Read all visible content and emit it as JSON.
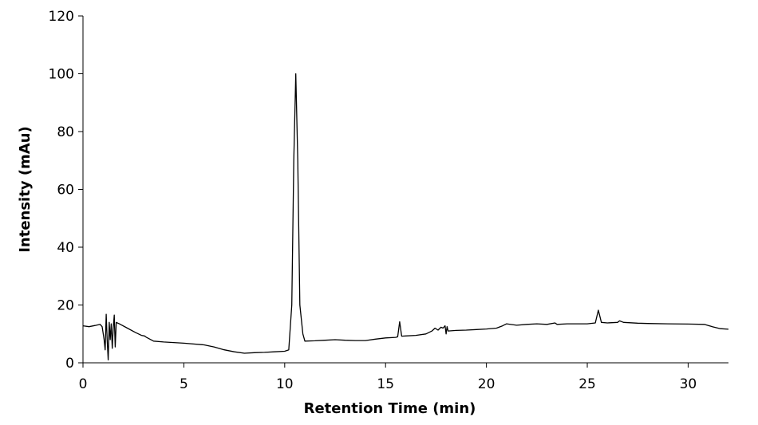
{
  "chart_data": {
    "type": "line",
    "title": "",
    "xlabel": "Retention Time (min)",
    "ylabel": "Intensity (mAu)",
    "xlim": [
      0,
      32
    ],
    "ylim": [
      0,
      120
    ],
    "x_ticks": [
      0,
      5,
      10,
      15,
      20,
      25,
      30
    ],
    "y_ticks": [
      0,
      20,
      40,
      60,
      80,
      100,
      120
    ],
    "grid": false,
    "legend": "none",
    "series": [
      {
        "color": "#000000",
        "points": [
          [
            0.0,
            12.8
          ],
          [
            0.3,
            12.5
          ],
          [
            0.6,
            12.9
          ],
          [
            0.85,
            13.3
          ],
          [
            0.95,
            12.5
          ],
          [
            1.05,
            8.0
          ],
          [
            1.1,
            4.5
          ],
          [
            1.15,
            16.8
          ],
          [
            1.2,
            8.0
          ],
          [
            1.25,
            1.0
          ],
          [
            1.3,
            14.0
          ],
          [
            1.35,
            8.0
          ],
          [
            1.4,
            13.5
          ],
          [
            1.45,
            5.0
          ],
          [
            1.5,
            12.0
          ],
          [
            1.55,
            16.5
          ],
          [
            1.6,
            5.5
          ],
          [
            1.65,
            14.0
          ],
          [
            1.8,
            13.5
          ],
          [
            2.2,
            12.0
          ],
          [
            2.6,
            10.5
          ],
          [
            2.9,
            9.5
          ],
          [
            3.05,
            9.3
          ],
          [
            3.15,
            8.8
          ],
          [
            3.5,
            7.5
          ],
          [
            4.0,
            7.2
          ],
          [
            5.0,
            6.8
          ],
          [
            6.0,
            6.2
          ],
          [
            6.5,
            5.5
          ],
          [
            7.0,
            4.5
          ],
          [
            7.5,
            3.8
          ],
          [
            8.0,
            3.3
          ],
          [
            8.5,
            3.5
          ],
          [
            9.0,
            3.6
          ],
          [
            9.5,
            3.8
          ],
          [
            10.0,
            4.0
          ],
          [
            10.2,
            4.5
          ],
          [
            10.35,
            20.0
          ],
          [
            10.45,
            70.0
          ],
          [
            10.55,
            100.0
          ],
          [
            10.65,
            70.0
          ],
          [
            10.75,
            20.0
          ],
          [
            10.9,
            10.0
          ],
          [
            11.0,
            7.5
          ],
          [
            11.5,
            7.6
          ],
          [
            12.0,
            7.8
          ],
          [
            12.5,
            8.0
          ],
          [
            13.0,
            7.8
          ],
          [
            13.5,
            7.7
          ],
          [
            14.0,
            7.7
          ],
          [
            14.5,
            8.2
          ],
          [
            15.0,
            8.6
          ],
          [
            15.5,
            8.8
          ],
          [
            15.6,
            9.0
          ],
          [
            15.7,
            14.2
          ],
          [
            15.8,
            9.2
          ],
          [
            16.0,
            9.3
          ],
          [
            16.5,
            9.5
          ],
          [
            17.0,
            10.0
          ],
          [
            17.3,
            11.0
          ],
          [
            17.45,
            12.0
          ],
          [
            17.6,
            11.3
          ],
          [
            17.75,
            12.3
          ],
          [
            17.85,
            12.0
          ],
          [
            17.95,
            12.8
          ],
          [
            18.0,
            10.0
          ],
          [
            18.05,
            12.5
          ],
          [
            18.1,
            11.0
          ],
          [
            18.5,
            11.2
          ],
          [
            19.0,
            11.3
          ],
          [
            19.5,
            11.5
          ],
          [
            20.0,
            11.7
          ],
          [
            20.5,
            12.0
          ],
          [
            20.8,
            12.8
          ],
          [
            21.0,
            13.5
          ],
          [
            21.5,
            13.0
          ],
          [
            22.0,
            13.3
          ],
          [
            22.5,
            13.5
          ],
          [
            23.0,
            13.3
          ],
          [
            23.4,
            13.8
          ],
          [
            23.5,
            13.3
          ],
          [
            24.0,
            13.5
          ],
          [
            24.5,
            13.5
          ],
          [
            25.0,
            13.5
          ],
          [
            25.4,
            13.8
          ],
          [
            25.55,
            18.2
          ],
          [
            25.7,
            14.0
          ],
          [
            26.0,
            13.8
          ],
          [
            26.5,
            14.0
          ],
          [
            26.6,
            14.5
          ],
          [
            26.8,
            14.0
          ],
          [
            27.5,
            13.7
          ],
          [
            28.0,
            13.6
          ],
          [
            29.0,
            13.5
          ],
          [
            30.0,
            13.4
          ],
          [
            30.8,
            13.3
          ],
          [
            31.2,
            12.5
          ],
          [
            31.6,
            11.8
          ],
          [
            32.0,
            11.6
          ]
        ]
      }
    ]
  }
}
